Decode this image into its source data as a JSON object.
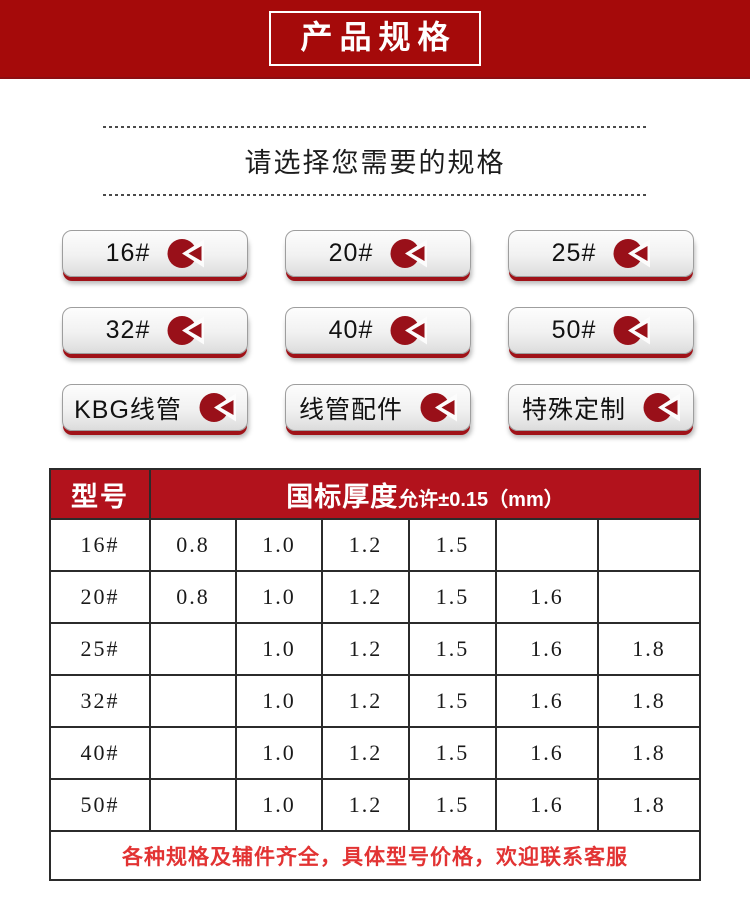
{
  "banner": {
    "title": "产品规格"
  },
  "section": {
    "title": "请选择您需要的规格"
  },
  "buttons": [
    {
      "label": "16#"
    },
    {
      "label": "20#"
    },
    {
      "label": "25#"
    },
    {
      "label": "32#"
    },
    {
      "label": "40#"
    },
    {
      "label": "50#"
    },
    {
      "label": "KBG线管"
    },
    {
      "label": "线管配件"
    },
    {
      "label": "特殊定制"
    }
  ],
  "table": {
    "model_header": "型号",
    "thickness_header_main": "国标厚度",
    "thickness_header_sub": "允许±0.15（mm）",
    "rows": [
      {
        "model": "16#",
        "values": [
          "0.8",
          "1.0",
          "1.2",
          "1.5",
          "",
          ""
        ]
      },
      {
        "model": "20#",
        "values": [
          "0.8",
          "1.0",
          "1.2",
          "1.5",
          "1.6",
          ""
        ]
      },
      {
        "model": "25#",
        "values": [
          "",
          "1.0",
          "1.2",
          "1.5",
          "1.6",
          "1.8"
        ]
      },
      {
        "model": "32#",
        "values": [
          "",
          "1.0",
          "1.2",
          "1.5",
          "1.6",
          "1.8"
        ]
      },
      {
        "model": "40#",
        "values": [
          "",
          "1.0",
          "1.2",
          "1.5",
          "1.6",
          "1.8"
        ]
      },
      {
        "model": "50#",
        "values": [
          "",
          "1.0",
          "1.2",
          "1.5",
          "1.6",
          "1.8"
        ]
      }
    ],
    "footer_note": "各种规格及辅件齐全，具体型号价格，欢迎联系客服"
  },
  "colors": {
    "banner_red": "#a50a0a",
    "table_header_red": "#b2121c",
    "pie_icon_red": "#991019",
    "button_shadow_red": "#a01218",
    "footer_text_red": "#e23333"
  },
  "icons": {
    "pie_icon": "exploded-pie-chart"
  }
}
